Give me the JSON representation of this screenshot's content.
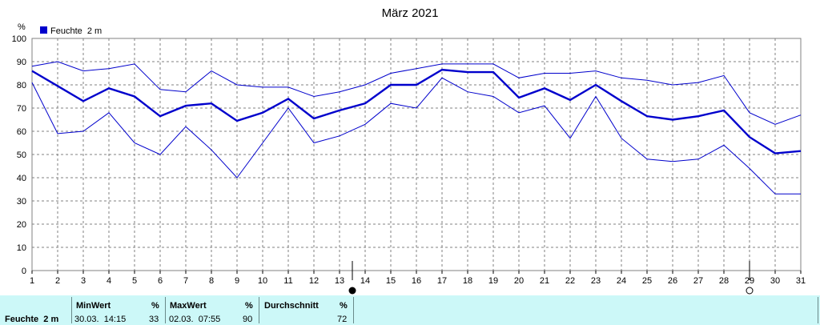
{
  "chart_data": {
    "type": "line",
    "title": "März 2021",
    "ylabel": "%",
    "xlabel": "",
    "ylim": [
      0,
      100
    ],
    "yticks": [
      0,
      10,
      20,
      30,
      40,
      50,
      60,
      70,
      80,
      90,
      100
    ],
    "xlim": [
      1,
      31
    ],
    "categories": [
      "1",
      "2",
      "3",
      "4",
      "5",
      "6",
      "7",
      "8",
      "9",
      "10",
      "11",
      "12",
      "13",
      "14",
      "15",
      "16",
      "17",
      "18",
      "19",
      "20",
      "21",
      "22",
      "23",
      "24",
      "25",
      "26",
      "27",
      "28",
      "29",
      "30",
      "31"
    ],
    "grid": true,
    "legend": {
      "position": "top-left",
      "label": "Feuchte  2 m",
      "color": "#0000cc"
    },
    "series": [
      {
        "name": "Feuchte  2 m",
        "role": "mean",
        "color": "#0000cc",
        "values": [
          86,
          79.5,
          73,
          78.5,
          75,
          66.5,
          71,
          72,
          64.5,
          68,
          74,
          65.5,
          69,
          72,
          80,
          80,
          86.5,
          85.5,
          85.5,
          74.5,
          78.5,
          73.5,
          80,
          73,
          66.5,
          65,
          66.5,
          69,
          57.5,
          50.5,
          51.5
        ]
      },
      {
        "role": "max",
        "color": "#0000cc",
        "values": [
          88,
          90,
          86,
          87,
          89,
          78,
          77,
          86,
          80,
          79,
          79,
          75,
          77,
          80,
          85,
          87,
          89,
          89,
          89,
          83,
          85,
          85,
          86,
          83,
          82,
          80,
          81,
          84,
          68,
          63,
          67
        ]
      },
      {
        "role": "min",
        "color": "#0000cc",
        "values": [
          81,
          59,
          60,
          68,
          55,
          50,
          62,
          52,
          40,
          55,
          70,
          55,
          58,
          63,
          72,
          70,
          83,
          77,
          75,
          68,
          71,
          57,
          75,
          57,
          48,
          47,
          48,
          54,
          44,
          33,
          33
        ]
      }
    ],
    "moon_markers": [
      {
        "day": 13.5,
        "phase": "new-moon"
      },
      {
        "day": 29,
        "phase": "full-moon"
      }
    ]
  },
  "stats": {
    "series_label": "Feuchte  2 m",
    "min_label": "MinWert",
    "min_unit": "%",
    "min_time": "30.03.  14:15",
    "min_value": "33",
    "max_label": "MaxWert",
    "max_unit": "%",
    "max_time": "02.03.  07:55",
    "max_value": "90",
    "avg_label": "Durchschnitt",
    "avg_unit": "%",
    "avg_value": "72"
  }
}
